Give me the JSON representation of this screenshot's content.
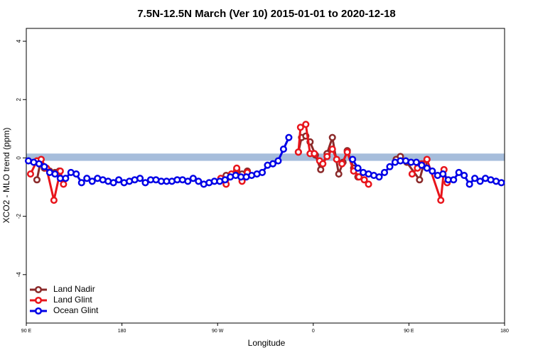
{
  "chart_data": {
    "type": "line",
    "title": "7.5N-12.5N March (Ver 10)   2015-01-01 to 2020-12-18",
    "x_label": "Longitude",
    "y_label": "XCO2 - MLO trend (ppm)",
    "xlim": [
      90,
      540
    ],
    "xticks": [
      {
        "value": 90,
        "label": "90 E"
      },
      180,
      {
        "value": 270,
        "label": "90 W"
      },
      {
        "value": 360,
        "label": "0"
      },
      {
        "value": 450,
        "label": "90 E"
      },
      {
        "value": 540,
        "label": "180"
      }
    ],
    "ylim": [
      -5.66,
      4.44
    ],
    "yticks": [
      -4,
      -2,
      0,
      2,
      4
    ],
    "band": {
      "ymin": -0.1,
      "ymax": 0.15,
      "color": "#a6bddb"
    },
    "legend": "bottom-left",
    "series": [
      {
        "name": "Land Nadir",
        "color": "#8b2a2a",
        "x": [
          100,
          103,
          107,
          112,
          117,
          121,
          200,
          278,
          283,
          288,
          293,
          298,
          320,
          346,
          349,
          353,
          357,
          362,
          367,
          373,
          378,
          384,
          388,
          392,
          398,
          402,
          420,
          438,
          442,
          448,
          460,
          464
        ],
        "values": [
          -0.75,
          -0.2,
          -0.35,
          -0.45,
          -0.5,
          -0.45,
          null,
          -0.6,
          -0.6,
          -0.4,
          -0.55,
          -0.45,
          null,
          0.2,
          0.7,
          0.75,
          0.55,
          0.1,
          -0.4,
          0.15,
          0.7,
          -0.55,
          -0.15,
          0.25,
          -0.35,
          -0.65,
          null,
          -0.05,
          0.05,
          -0.15,
          -0.75,
          -0.2
        ]
      },
      {
        "name": "Land Glint",
        "color": "#e8141b",
        "x": [
          94,
          100,
          104,
          109,
          116,
          122,
          125,
          200,
          273,
          278,
          283,
          288,
          293,
          298,
          320,
          346,
          348,
          353,
          357,
          361,
          366,
          369,
          373,
          378,
          382,
          387,
          392,
          398,
          403,
          408,
          412,
          430,
          453,
          458,
          462,
          467,
          480,
          483,
          486
        ],
        "values": [
          -0.55,
          -0.1,
          -0.05,
          -0.35,
          -1.45,
          -0.45,
          -0.9,
          null,
          -0.7,
          -0.9,
          -0.55,
          -0.35,
          -0.8,
          -0.5,
          null,
          0.2,
          1.05,
          1.15,
          0.15,
          0.15,
          -0.1,
          -0.2,
          0.05,
          0.3,
          -0.05,
          -0.2,
          0.2,
          -0.45,
          -0.65,
          -0.75,
          -0.9,
          null,
          -0.55,
          -0.35,
          -0.2,
          -0.05,
          -1.45,
          -0.4,
          -0.85
        ]
      },
      {
        "name": "Ocean Glint",
        "color": "#0000e6",
        "x": [
          92,
          97,
          102,
          107,
          112,
          117,
          122,
          127,
          132,
          137,
          142,
          147,
          152,
          157,
          162,
          167,
          172,
          177,
          182,
          187,
          192,
          197,
          202,
          207,
          212,
          217,
          222,
          227,
          232,
          237,
          242,
          247,
          252,
          257,
          262,
          267,
          272,
          277,
          282,
          287,
          292,
          297,
          302,
          307,
          312,
          317,
          322,
          327,
          332,
          337,
          342,
          370,
          397,
          402,
          407,
          412,
          417,
          422,
          427,
          432,
          437,
          442,
          447,
          452,
          457,
          462,
          467,
          472,
          477,
          482,
          487,
          492,
          497,
          502,
          507,
          512,
          517,
          522,
          527,
          532,
          537
        ],
        "values": [
          -0.1,
          -0.15,
          -0.2,
          -0.3,
          -0.5,
          -0.55,
          -0.7,
          -0.7,
          -0.5,
          -0.55,
          -0.85,
          -0.7,
          -0.8,
          -0.7,
          -0.75,
          -0.8,
          -0.85,
          -0.75,
          -0.85,
          -0.8,
          -0.75,
          -0.7,
          -0.85,
          -0.75,
          -0.75,
          -0.8,
          -0.8,
          -0.8,
          -0.75,
          -0.75,
          -0.8,
          -0.7,
          -0.8,
          -0.9,
          -0.85,
          -0.8,
          -0.8,
          -0.75,
          -0.65,
          -0.6,
          -0.65,
          -0.65,
          -0.6,
          -0.55,
          -0.5,
          -0.25,
          -0.2,
          -0.1,
          0.3,
          0.7,
          null,
          null,
          -0.05,
          -0.35,
          -0.5,
          -0.55,
          -0.6,
          -0.65,
          -0.5,
          -0.3,
          -0.15,
          -0.1,
          -0.1,
          -0.15,
          -0.15,
          -0.25,
          -0.35,
          -0.45,
          -0.6,
          -0.55,
          -0.75,
          -0.75,
          -0.5,
          -0.6,
          -0.9,
          -0.7,
          -0.8,
          -0.7,
          -0.75,
          -0.8,
          -0.85
        ]
      }
    ]
  }
}
